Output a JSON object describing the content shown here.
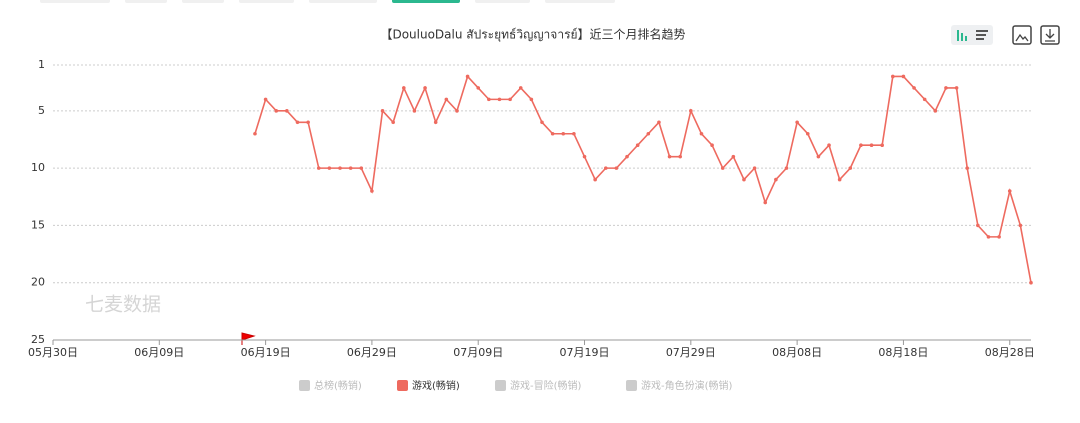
{
  "chart_data": {
    "type": "line",
    "title": "【DouluoDalu สัประยุทธ์วิญญาจารย์】近三个月排名趋势",
    "watermark": "七麦数据",
    "categories": [
      "05月30日",
      null,
      null,
      null,
      null,
      null,
      null,
      null,
      null,
      null,
      "06月09日",
      null,
      null,
      null,
      null,
      null,
      null,
      null,
      null,
      null,
      "06月19日",
      null,
      null,
      null,
      null,
      null,
      null,
      null,
      null,
      null,
      "06月29日",
      null,
      null,
      null,
      null,
      null,
      null,
      null,
      null,
      null,
      "07月09日",
      null,
      null,
      null,
      null,
      null,
      null,
      null,
      null,
      null,
      "07月19日",
      null,
      null,
      null,
      null,
      null,
      null,
      null,
      null,
      null,
      "07月29日",
      null,
      null,
      null,
      null,
      null,
      null,
      null,
      null,
      null,
      "08月08日",
      null,
      null,
      null,
      null,
      null,
      null,
      null,
      null,
      null,
      "08月18日",
      null,
      null,
      null,
      null,
      null,
      null,
      null,
      null,
      null,
      "08月28日",
      null,
      null
    ],
    "series": [
      {
        "name": "游戏(畅销)",
        "color": "#ee6a5f",
        "values": [
          null,
          null,
          null,
          null,
          null,
          null,
          null,
          null,
          null,
          null,
          null,
          null,
          null,
          null,
          null,
          null,
          null,
          null,
          null,
          7,
          4,
          5,
          5,
          6,
          6,
          10,
          10,
          10,
          10,
          10,
          12,
          5,
          6,
          3,
          5,
          3,
          6,
          4,
          5,
          2,
          3,
          4,
          4,
          4,
          3,
          4,
          6,
          7,
          7,
          7,
          9,
          11,
          10,
          10,
          9,
          8,
          7,
          6,
          9,
          9,
          5,
          7,
          8,
          10,
          9,
          11,
          10,
          13,
          11,
          10,
          6,
          7,
          9,
          8,
          11,
          10,
          8,
          8,
          8,
          2,
          2,
          3,
          4,
          5,
          3,
          3,
          10,
          15,
          16,
          16,
          12,
          15,
          20
        ]
      }
    ],
    "legend": [
      {
        "name": "总榜(畅销)",
        "active": false
      },
      {
        "name": "游戏(畅销)",
        "active": true
      },
      {
        "name": "游戏-冒险(畅销)",
        "active": false
      },
      {
        "name": "游戏-角色扮演(畅销)",
        "active": false
      }
    ],
    "ylim": [
      1,
      25
    ],
    "y_inverted": true,
    "yticks": [
      1,
      5,
      10,
      15,
      20,
      25
    ],
    "grid": true
  }
}
